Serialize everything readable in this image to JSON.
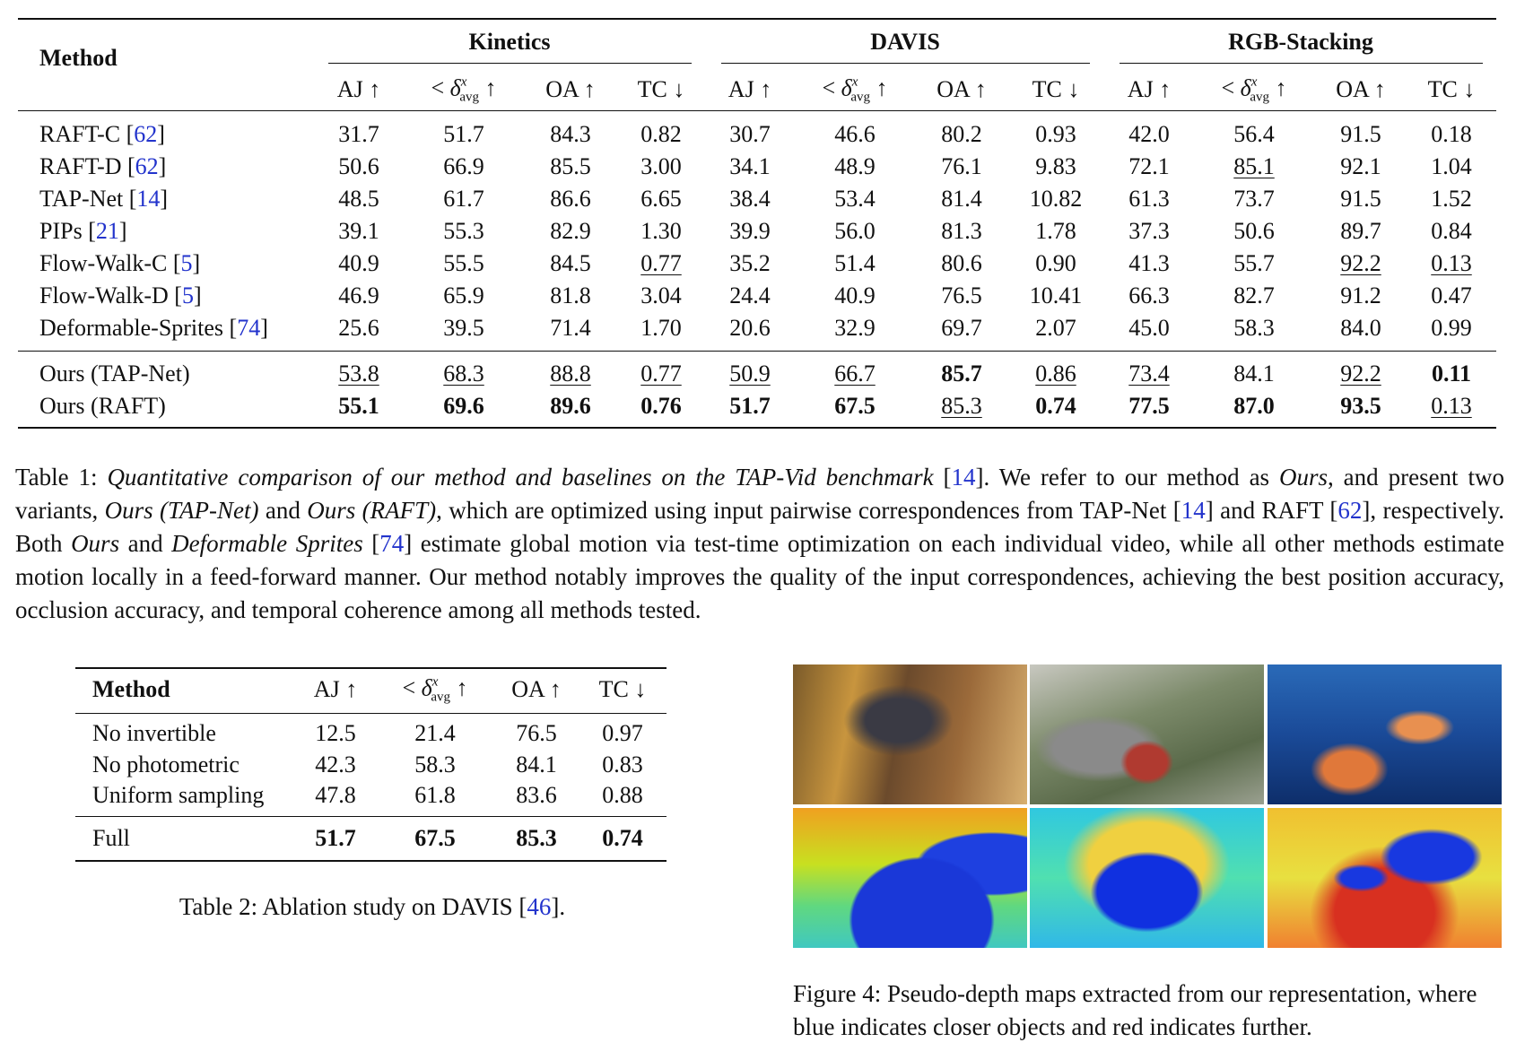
{
  "table1": {
    "header_method": "Method",
    "groups": [
      "Kinetics",
      "DAVIS",
      "RGB-Stacking"
    ],
    "columns": [
      [
        {
          "text": "AJ ↑"
        }
      ],
      [
        {
          "text": "< "
        },
        {
          "text": "δ",
          "style": "italic"
        },
        {
          "text": "x",
          "style": "sup"
        },
        {
          "text": "avg",
          "style": "sub"
        },
        {
          "text": " ↑"
        }
      ],
      [
        {
          "text": "OA ↑"
        }
      ],
      [
        {
          "text": "TC ↓"
        }
      ],
      [
        {
          "text": "AJ ↑"
        }
      ],
      [
        {
          "text": "< "
        },
        {
          "text": "δ",
          "style": "italic"
        },
        {
          "text": "x",
          "style": "sup"
        },
        {
          "text": "avg",
          "style": "sub"
        },
        {
          "text": " ↑"
        }
      ],
      [
        {
          "text": "OA ↑"
        }
      ],
      [
        {
          "text": "TC ↓"
        }
      ],
      [
        {
          "text": "AJ ↑"
        }
      ],
      [
        {
          "text": "< "
        },
        {
          "text": "δ",
          "style": "italic"
        },
        {
          "text": "x",
          "style": "sup"
        },
        {
          "text": "avg",
          "style": "sub"
        },
        {
          "text": " ↑"
        }
      ],
      [
        {
          "text": "OA ↑"
        }
      ],
      [
        {
          "text": "TC ↓"
        }
      ]
    ],
    "rows": [
      {
        "method": [
          {
            "text": "RAFT-C ["
          },
          {
            "text": "62",
            "style": "link"
          },
          {
            "text": "]"
          }
        ],
        "cells": [
          "31.7",
          "51.7",
          "84.3",
          "0.82",
          "30.7",
          "46.6",
          "80.2",
          "0.93",
          "42.0",
          "56.4",
          "91.5",
          "0.18"
        ]
      },
      {
        "method": [
          {
            "text": "RAFT-D ["
          },
          {
            "text": "62",
            "style": "link"
          },
          {
            "text": "]"
          }
        ],
        "cells": [
          "50.6",
          "66.9",
          "85.5",
          "3.00",
          "34.1",
          "48.9",
          "76.1",
          "9.83",
          "72.1",
          "85.1",
          "92.1",
          "1.04"
        ]
      },
      {
        "method": [
          {
            "text": "TAP-Net ["
          },
          {
            "text": "14",
            "style": "link"
          },
          {
            "text": "]"
          }
        ],
        "cells": [
          "48.5",
          "61.7",
          "86.6",
          "6.65",
          "38.4",
          "53.4",
          "81.4",
          "10.82",
          "61.3",
          "73.7",
          "91.5",
          "1.52"
        ]
      },
      {
        "method": [
          {
            "text": "PIPs ["
          },
          {
            "text": "21",
            "style": "link"
          },
          {
            "text": "]"
          }
        ],
        "cells": [
          "39.1",
          "55.3",
          "82.9",
          "1.30",
          "39.9",
          "56.0",
          "81.3",
          "1.78",
          "37.3",
          "50.6",
          "89.7",
          "0.84"
        ]
      },
      {
        "method": [
          {
            "text": "Flow-Walk-C ["
          },
          {
            "text": "5",
            "style": "link"
          },
          {
            "text": "]"
          }
        ],
        "cells": [
          "40.9",
          "55.5",
          "84.5",
          "0.77",
          "35.2",
          "51.4",
          "80.6",
          "0.90",
          "41.3",
          "55.7",
          "92.2",
          "0.13"
        ]
      },
      {
        "method": [
          {
            "text": "Flow-Walk-D ["
          },
          {
            "text": "5",
            "style": "link"
          },
          {
            "text": "]"
          }
        ],
        "cells": [
          "46.9",
          "65.9",
          "81.8",
          "3.04",
          "24.4",
          "40.9",
          "76.5",
          "10.41",
          "66.3",
          "82.7",
          "91.2",
          "0.47"
        ]
      },
      {
        "method": [
          {
            "text": "Deformable-Sprites ["
          },
          {
            "text": "74",
            "style": "link"
          },
          {
            "text": "]"
          }
        ],
        "cells": [
          "25.6",
          "39.5",
          "71.4",
          "1.70",
          "20.6",
          "32.9",
          "69.7",
          "2.07",
          "45.0",
          "58.3",
          "84.0",
          "0.99"
        ]
      },
      {
        "method": [
          {
            "text": "Ours (TAP-Net)"
          }
        ],
        "cells": [
          "53.8",
          "68.3",
          "88.8",
          "0.77",
          "50.9",
          "66.7",
          "85.7",
          "0.86",
          "73.4",
          "84.1",
          "92.2",
          "0.11"
        ]
      },
      {
        "method": [
          {
            "text": "Ours (RAFT)"
          }
        ],
        "cells": [
          "55.1",
          "69.6",
          "89.6",
          "0.76",
          "51.7",
          "67.5",
          "85.3",
          "0.74",
          "77.5",
          "87.0",
          "93.5",
          "0.13"
        ]
      }
    ],
    "separator_before": 7,
    "bold": [
      [
        7,
        6
      ],
      [
        7,
        11
      ],
      [
        8,
        0
      ],
      [
        8,
        1
      ],
      [
        8,
        2
      ],
      [
        8,
        3
      ],
      [
        8,
        4
      ],
      [
        8,
        5
      ],
      [
        8,
        7
      ],
      [
        8,
        8
      ],
      [
        8,
        9
      ],
      [
        8,
        10
      ]
    ],
    "underline": [
      [
        1,
        9
      ],
      [
        4,
        3
      ],
      [
        4,
        10
      ],
      [
        4,
        11
      ],
      [
        7,
        0
      ],
      [
        7,
        1
      ],
      [
        7,
        2
      ],
      [
        7,
        3
      ],
      [
        7,
        4
      ],
      [
        7,
        5
      ],
      [
        7,
        7
      ],
      [
        7,
        8
      ],
      [
        7,
        10
      ],
      [
        8,
        6
      ],
      [
        8,
        11
      ]
    ]
  },
  "caption1": [
    {
      "text": "Table 1: "
    },
    {
      "text": "Quantitative comparison of our method and baselines on the TAP-Vid benchmark",
      "style": "italic"
    },
    {
      "text": " ["
    },
    {
      "text": "14",
      "style": "link"
    },
    {
      "text": "]. We refer to our method as "
    },
    {
      "text": "Ours",
      "style": "italic"
    },
    {
      "text": ", and present two variants, "
    },
    {
      "text": "Ours (TAP-Net)",
      "style": "italic"
    },
    {
      "text": " and "
    },
    {
      "text": "Ours (RAFT)",
      "style": "italic"
    },
    {
      "text": ", which are optimized using input pairwise correspondences from TAP-Net ["
    },
    {
      "text": "14",
      "style": "link"
    },
    {
      "text": "] and RAFT ["
    },
    {
      "text": "62",
      "style": "link"
    },
    {
      "text": "], respectively. Both "
    },
    {
      "text": "Ours",
      "style": "italic"
    },
    {
      "text": " and "
    },
    {
      "text": "Deformable Sprites",
      "style": "italic"
    },
    {
      "text": " ["
    },
    {
      "text": "74",
      "style": "link"
    },
    {
      "text": "] estimate global motion via test-time optimization on each individual video, while all other methods estimate motion locally in a feed-forward manner. Our method notably improves the quality of the input correspondences, achieving the best position accuracy, occlusion accuracy, and temporal coherence among all methods tested."
    }
  ],
  "table2": {
    "header_method": "Method",
    "columns": [
      [
        {
          "text": "AJ ↑"
        }
      ],
      [
        {
          "text": "< "
        },
        {
          "text": "δ",
          "style": "italic"
        },
        {
          "text": "x",
          "style": "sup"
        },
        {
          "text": "avg",
          "style": "sub"
        },
        {
          "text": " ↑"
        }
      ],
      [
        {
          "text": "OA ↑"
        }
      ],
      [
        {
          "text": "TC ↓"
        }
      ]
    ],
    "rows": [
      {
        "method": [
          {
            "text": "No invertible"
          }
        ],
        "cells": [
          "12.5",
          "21.4",
          "76.5",
          "0.97"
        ]
      },
      {
        "method": [
          {
            "text": "No photometric"
          }
        ],
        "cells": [
          "42.3",
          "58.3",
          "84.1",
          "0.83"
        ]
      },
      {
        "method": [
          {
            "text": "Uniform sampling"
          }
        ],
        "cells": [
          "47.8",
          "61.8",
          "83.6",
          "0.88"
        ]
      },
      {
        "method": [
          {
            "text": "Full"
          }
        ],
        "cells": [
          "51.7",
          "67.5",
          "85.3",
          "0.74"
        ]
      }
    ],
    "separator_before": 3,
    "bold": [
      [
        3,
        0
      ],
      [
        3,
        1
      ],
      [
        3,
        2
      ],
      [
        3,
        3
      ]
    ],
    "underline": []
  },
  "caption2": [
    {
      "text": "Table 2: Ablation study on DAVIS ["
    },
    {
      "text": "46",
      "style": "link"
    },
    {
      "text": "]."
    }
  ],
  "figure": {
    "caption": [
      {
        "text": "Figure 4: Pseudo-depth maps extracted from our representation, where blue indicates closer objects and red indicates further."
      }
    ]
  }
}
